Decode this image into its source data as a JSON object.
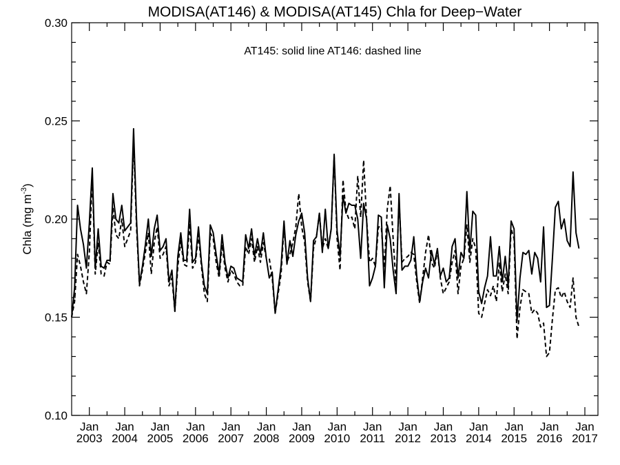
{
  "chart_data": {
    "type": "line",
    "title": "MODISA(AT146) & MODISA(AT145)  Chla for Deep−Water",
    "ylabel": "Chla (mg m",
    "ylabel_sup": "-3",
    "ylabel_close": ")",
    "annotation": "AT145: solid line   AT146: dashed line",
    "xlim": [
      2002.5,
      2017.37
    ],
    "ylim": [
      0.1,
      0.3
    ],
    "yticks": [
      0.1,
      0.15,
      0.2,
      0.25,
      0.3
    ],
    "ytick_labels": [
      "0.10",
      "0.15",
      "0.20",
      "0.25",
      "0.30"
    ],
    "xticks": [
      2003,
      2004,
      2005,
      2006,
      2007,
      2008,
      2009,
      2010,
      2011,
      2012,
      2013,
      2014,
      2015,
      2016,
      2017
    ],
    "xtick_month": "Jan",
    "xtick_labels": [
      "2003",
      "2004",
      "2005",
      "2006",
      "2007",
      "2008",
      "2009",
      "2010",
      "2011",
      "2012",
      "2013",
      "2014",
      "2015",
      "2016",
      "2017"
    ],
    "x_start": 2002.5,
    "x_step": 0.0833333,
    "series": [
      {
        "style": "solid",
        "values": [
          0.15,
          0.165,
          0.207,
          0.195,
          0.187,
          0.175,
          0.198,
          0.226,
          0.175,
          0.195,
          0.176,
          0.175,
          0.179,
          0.179,
          0.213,
          0.2,
          0.198,
          0.207,
          0.194,
          0.196,
          0.198,
          0.246,
          0.2,
          0.167,
          0.176,
          0.187,
          0.2,
          0.181,
          0.195,
          0.202,
          0.184,
          0.186,
          0.19,
          0.168,
          0.174,
          0.153,
          0.181,
          0.193,
          0.179,
          0.179,
          0.205,
          0.178,
          0.18,
          0.196,
          0.178,
          0.166,
          0.162,
          0.197,
          0.193,
          0.182,
          0.172,
          0.192,
          0.178,
          0.17,
          0.176,
          0.175,
          0.17,
          0.169,
          0.168,
          0.192,
          0.185,
          0.195,
          0.181,
          0.19,
          0.182,
          0.193,
          0.18,
          0.17,
          0.173,
          0.152,
          0.164,
          0.176,
          0.199,
          0.177,
          0.189,
          0.181,
          0.192,
          0.199,
          0.203,
          0.193,
          0.17,
          0.158,
          0.189,
          0.191,
          0.203,
          0.183,
          0.205,
          0.185,
          0.195,
          0.233,
          0.194,
          0.181,
          0.212,
          0.203,
          0.208,
          0.207,
          0.207,
          0.2,
          0.18,
          0.208,
          0.2,
          0.166,
          0.17,
          0.176,
          0.202,
          0.201,
          0.165,
          0.197,
          0.19,
          0.174,
          0.162,
          0.213,
          0.174,
          0.176,
          0.176,
          0.179,
          0.191,
          0.171,
          0.158,
          0.168,
          0.175,
          0.17,
          0.184,
          0.177,
          0.185,
          0.171,
          0.175,
          0.168,
          0.17,
          0.186,
          0.19,
          0.17,
          0.183,
          0.18,
          0.214,
          0.183,
          0.204,
          0.202,
          0.163,
          0.157,
          0.165,
          0.171,
          0.191,
          0.171,
          0.171,
          0.186,
          0.168,
          0.181,
          0.166,
          0.199,
          0.195,
          0.148,
          0.17,
          0.183,
          0.182,
          0.184,
          0.172,
          0.183,
          0.18,
          0.168,
          0.196,
          0.155,
          0.156,
          0.18,
          0.206,
          0.209,
          0.195,
          0.2,
          0.189,
          0.186,
          0.224,
          0.193,
          0.185
        ]
      },
      {
        "style": "dashed",
        "values": [
          0.15,
          0.158,
          0.182,
          0.176,
          0.168,
          0.162,
          0.183,
          0.222,
          0.172,
          0.188,
          0.172,
          0.171,
          0.178,
          0.177,
          0.206,
          0.192,
          0.19,
          0.2,
          0.186,
          0.19,
          0.194,
          0.24,
          0.196,
          0.166,
          0.174,
          0.183,
          0.193,
          0.172,
          0.188,
          0.196,
          0.18,
          0.182,
          0.186,
          0.166,
          0.17,
          0.153,
          0.176,
          0.189,
          0.177,
          0.176,
          0.198,
          0.175,
          0.178,
          0.192,
          0.176,
          0.162,
          0.158,
          0.193,
          0.19,
          0.178,
          0.17,
          0.187,
          0.175,
          0.168,
          0.174,
          0.172,
          0.168,
          0.166,
          0.166,
          0.186,
          0.182,
          0.19,
          0.178,
          0.186,
          0.178,
          0.188,
          0.18,
          0.18,
          0.17,
          0.152,
          0.162,
          0.172,
          0.196,
          0.178,
          0.182,
          0.188,
          0.196,
          0.213,
          0.196,
          0.188,
          0.168,
          0.158,
          0.185,
          0.191,
          0.203,
          0.185,
          0.19,
          0.185,
          0.195,
          0.232,
          0.19,
          0.174,
          0.22,
          0.204,
          0.2,
          0.201,
          0.195,
          0.222,
          0.201,
          0.23,
          0.2,
          0.178,
          0.18,
          0.176,
          0.196,
          0.196,
          0.175,
          0.205,
          0.217,
          0.19,
          0.166,
          0.21,
          0.178,
          0.18,
          0.181,
          0.183,
          0.182,
          0.168,
          0.157,
          0.17,
          0.183,
          0.192,
          0.178,
          0.175,
          0.184,
          0.17,
          0.162,
          0.165,
          0.168,
          0.178,
          0.184,
          0.162,
          0.176,
          0.18,
          0.197,
          0.178,
          0.19,
          0.185,
          0.152,
          0.15,
          0.157,
          0.164,
          0.161,
          0.166,
          0.158,
          0.178,
          0.163,
          0.172,
          0.162,
          0.195,
          0.19,
          0.139,
          0.155,
          0.164,
          0.163,
          0.162,
          0.152,
          0.154,
          0.152,
          0.145,
          0.147,
          0.13,
          0.132,
          0.149,
          0.164,
          0.165,
          0.16,
          0.163,
          0.158,
          0.155,
          0.17,
          0.15,
          0.145
        ]
      }
    ]
  }
}
